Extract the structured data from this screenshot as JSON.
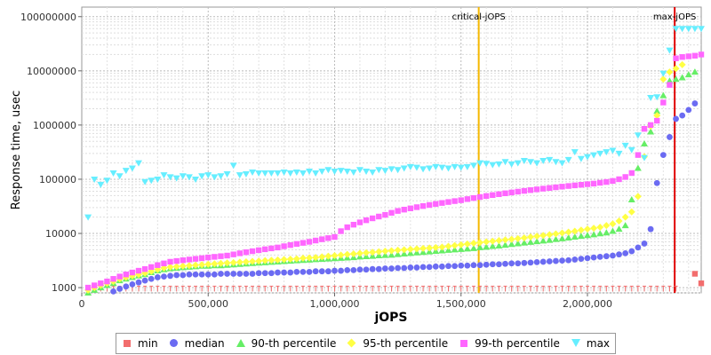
{
  "chart_data": {
    "type": "scatter",
    "title": "",
    "xlabel": "jOPS",
    "ylabel": "Response time, usec",
    "y_scale": "log",
    "xlim": [
      0,
      2450000
    ],
    "ylim": [
      800,
      150000000
    ],
    "x_ticks": [
      {
        "value": 0,
        "label": "0"
      },
      {
        "value": 500000,
        "label": "500,000"
      },
      {
        "value": 1000000,
        "label": "1,000,000"
      },
      {
        "value": 1500000,
        "label": "1,500,000"
      },
      {
        "value": 2000000,
        "label": "2,000,000"
      }
    ],
    "y_ticks": [
      {
        "value": 1000,
        "label": "1000"
      },
      {
        "value": 10000,
        "label": "10000"
      },
      {
        "value": 100000,
        "label": "100000"
      },
      {
        "value": 1000000,
        "label": "1000000"
      },
      {
        "value": 10000000,
        "label": "10000000"
      },
      {
        "value": 100000000,
        "label": "100000000"
      }
    ],
    "markers": [
      {
        "label": "critical-jOPS",
        "x": 1570000,
        "color": "#f5b800"
      },
      {
        "label": "max-jOPS",
        "x": 2345000,
        "color": "#e00000"
      }
    ],
    "x": [
      25000,
      50000,
      75000,
      100000,
      125000,
      150000,
      175000,
      200000,
      225000,
      250000,
      275000,
      300000,
      325000,
      350000,
      375000,
      400000,
      425000,
      450000,
      475000,
      500000,
      525000,
      550000,
      575000,
      600000,
      625000,
      650000,
      675000,
      700000,
      725000,
      750000,
      775000,
      800000,
      825000,
      850000,
      875000,
      900000,
      925000,
      950000,
      975000,
      1000000,
      1025000,
      1050000,
      1075000,
      1100000,
      1125000,
      1150000,
      1175000,
      1200000,
      1225000,
      1250000,
      1275000,
      1300000,
      1325000,
      1350000,
      1375000,
      1400000,
      1425000,
      1450000,
      1475000,
      1500000,
      1525000,
      1550000,
      1575000,
      1600000,
      1625000,
      1650000,
      1675000,
      1700000,
      1725000,
      1750000,
      1775000,
      1800000,
      1825000,
      1850000,
      1875000,
      1900000,
      1925000,
      1950000,
      1975000,
      2000000,
      2025000,
      2050000,
      2075000,
      2100000,
      2125000,
      2150000,
      2175000,
      2200000,
      2225000,
      2250000,
      2275000,
      2300000,
      2325000,
      2350000,
      2375000,
      2400000,
      2425000,
      2450000
    ],
    "series": [
      {
        "name": "min",
        "color": "#f26d6d",
        "symbol": "square",
        "values": [
          950,
          950,
          950,
          950,
          950,
          950,
          950,
          950,
          950,
          950,
          950,
          950,
          950,
          950,
          950,
          950,
          950,
          950,
          950,
          950,
          950,
          950,
          950,
          950,
          950,
          950,
          950,
          950,
          950,
          950,
          950,
          950,
          950,
          950,
          950,
          950,
          950,
          950,
          950,
          950,
          950,
          950,
          950,
          950,
          950,
          950,
          950,
          950,
          950,
          950,
          950,
          950,
          950,
          950,
          950,
          950,
          950,
          950,
          950,
          950,
          950,
          950,
          950,
          950,
          950,
          950,
          950,
          950,
          950,
          950,
          950,
          950,
          950,
          950,
          950,
          950,
          950,
          950,
          950,
          950,
          950,
          950,
          950,
          950,
          950,
          950,
          950,
          950,
          950,
          950,
          950,
          950,
          950,
          950,
          null,
          null,
          1800,
          1200
        ]
      },
      {
        "name": "median",
        "color": "#6b6bf2",
        "symbol": "circle",
        "values": [
          null,
          null,
          700,
          750,
          850,
          950,
          1050,
          1150,
          1250,
          1350,
          1450,
          1550,
          1600,
          1650,
          1700,
          1700,
          1750,
          1750,
          1750,
          1750,
          1750,
          1800,
          1800,
          1800,
          1800,
          1800,
          1800,
          1850,
          1850,
          1850,
          1900,
          1900,
          1900,
          1950,
          1950,
          1950,
          2000,
          2000,
          2000,
          2050,
          2050,
          2100,
          2100,
          2150,
          2150,
          2200,
          2200,
          2250,
          2250,
          2300,
          2300,
          2350,
          2350,
          2400,
          2400,
          2450,
          2450,
          2500,
          2500,
          2550,
          2550,
          2600,
          2600,
          2650,
          2700,
          2700,
          2750,
          2800,
          2800,
          2850,
          2900,
          2950,
          3000,
          3050,
          3100,
          3150,
          3200,
          3300,
          3400,
          3500,
          3600,
          3700,
          3800,
          3900,
          4100,
          4300,
          4700,
          5500,
          6500,
          12000,
          85000,
          280000,
          600000,
          1300000,
          1500000,
          1900000,
          2500000,
          null
        ]
      },
      {
        "name": "90-th percentile",
        "color": "#66ee66",
        "symbol": "triangle-up",
        "values": [
          800,
          900,
          1000,
          1100,
          1200,
          1350,
          1450,
          1550,
          1650,
          1750,
          1900,
          2050,
          2150,
          2250,
          2300,
          2350,
          2400,
          2450,
          2500,
          2500,
          2550,
          2550,
          2600,
          2650,
          2700,
          2750,
          2800,
          2850,
          2900,
          2950,
          3000,
          3050,
          3100,
          3150,
          3200,
          3250,
          3300,
          3350,
          3400,
          3450,
          3500,
          3550,
          3600,
          3700,
          3750,
          3800,
          3900,
          3950,
          4000,
          4100,
          4200,
          4300,
          4400,
          4500,
          4600,
          4700,
          4800,
          4900,
          5000,
          5100,
          5200,
          5300,
          5500,
          5600,
          5800,
          5900,
          6100,
          6300,
          6500,
          6700,
          6900,
          7100,
          7300,
          7500,
          7800,
          8000,
          8300,
          8600,
          8900,
          9200,
          9500,
          9900,
          10300,
          11000,
          12000,
          14000,
          42000,
          160000,
          450000,
          750000,
          1800000,
          3500000,
          6500000,
          7000000,
          7500000,
          8500000,
          9500000,
          null
        ]
      },
      {
        "name": "95-th percentile",
        "color": "#ffff44",
        "symbol": "diamond",
        "values": [
          900,
          1000,
          1100,
          1200,
          1300,
          1450,
          1550,
          1650,
          1750,
          1850,
          2000,
          2150,
          2300,
          2400,
          2450,
          2500,
          2550,
          2600,
          2650,
          2700,
          2750,
          2800,
          2850,
          2900,
          2950,
          3000,
          3050,
          3100,
          3150,
          3200,
          3250,
          3300,
          3350,
          3400,
          3500,
          3550,
          3600,
          3700,
          3800,
          3900,
          4000,
          4100,
          4200,
          4300,
          4400,
          4500,
          4600,
          4700,
          4800,
          4900,
          5000,
          5100,
          5200,
          5300,
          5400,
          5500,
          5600,
          5800,
          6000,
          6200,
          6400,
          6600,
          6800,
          7000,
          7200,
          7400,
          7600,
          7800,
          8000,
          8300,
          8600,
          8900,
          9200,
          9500,
          9800,
          10200,
          10600,
          11000,
          11500,
          12000,
          12500,
          13000,
          14000,
          15000,
          17000,
          20000,
          25000,
          48000,
          260000,
          950000,
          1500000,
          7000000,
          9500000,
          11000000,
          13000000,
          null,
          null,
          null
        ]
      },
      {
        "name": "99-th percentile",
        "color": "#ff66ff",
        "symbol": "square",
        "values": [
          1000,
          1100,
          1200,
          1300,
          1450,
          1600,
          1750,
          1900,
          2050,
          2200,
          2400,
          2600,
          2800,
          3000,
          3100,
          3200,
          3300,
          3400,
          3500,
          3600,
          3700,
          3800,
          3900,
          4100,
          4300,
          4500,
          4700,
          4900,
          5100,
          5300,
          5500,
          5800,
          6100,
          6400,
          6700,
          7000,
          7400,
          7800,
          8200,
          8600,
          11000,
          13000,
          14500,
          16000,
          17500,
          19000,
          20500,
          22000,
          24000,
          26000,
          27500,
          29000,
          30500,
          32000,
          33500,
          35000,
          36500,
          38000,
          39500,
          41000,
          43000,
          45000,
          47000,
          49000,
          51000,
          53000,
          55000,
          57000,
          59000,
          61000,
          63000,
          65000,
          67000,
          69000,
          71000,
          73000,
          75000,
          77000,
          79000,
          81000,
          83000,
          86000,
          89000,
          93000,
          100000,
          110000,
          130000,
          280000,
          850000,
          1000000,
          1200000,
          2600000,
          5500000,
          17000000,
          18000000,
          18500000,
          19000000,
          20000000
        ]
      },
      {
        "name": "max",
        "color": "#66eeff",
        "symbol": "triangle-down",
        "values": [
          20000,
          100000,
          80000,
          95000,
          130000,
          115000,
          145000,
          160000,
          200000,
          90000,
          95000,
          100000,
          120000,
          110000,
          105000,
          115000,
          110000,
          100000,
          115000,
          120000,
          110000,
          115000,
          125000,
          180000,
          120000,
          125000,
          135000,
          130000,
          130000,
          130000,
          130000,
          135000,
          130000,
          135000,
          130000,
          140000,
          130000,
          140000,
          150000,
          140000,
          145000,
          140000,
          135000,
          150000,
          140000,
          135000,
          150000,
          145000,
          155000,
          150000,
          160000,
          170000,
          165000,
          155000,
          160000,
          170000,
          165000,
          160000,
          170000,
          165000,
          170000,
          180000,
          200000,
          195000,
          185000,
          190000,
          210000,
          190000,
          200000,
          220000,
          210000,
          200000,
          220000,
          230000,
          210000,
          200000,
          230000,
          320000,
          240000,
          260000,
          280000,
          300000,
          320000,
          340000,
          300000,
          420000,
          350000,
          650000,
          250000,
          3200000,
          3300000,
          9000000,
          24000000,
          60000000,
          60000000,
          60000000,
          60000000,
          60000000
        ]
      }
    ]
  }
}
